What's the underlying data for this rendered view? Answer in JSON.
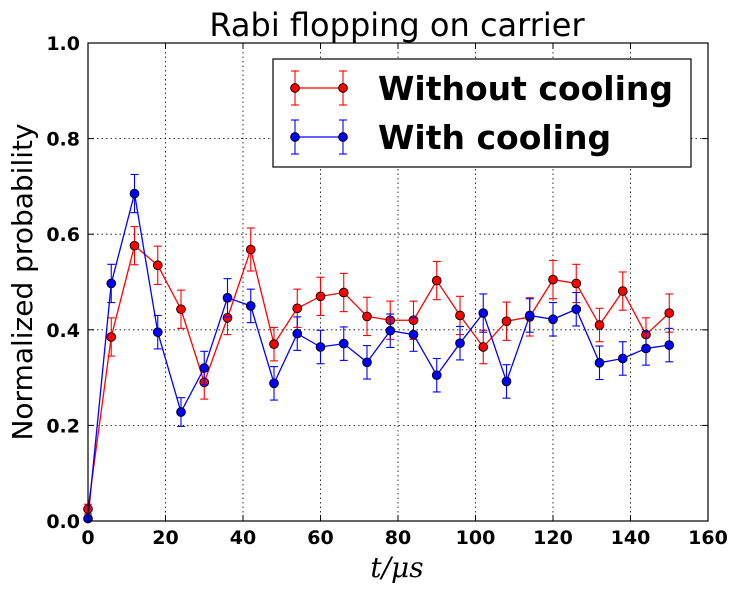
{
  "chart_data": {
    "type": "line",
    "title": "Rabi flopping on carrier",
    "xlabel": "t/μs",
    "ylabel": "Normalized probability",
    "xlim": [
      0,
      160
    ],
    "ylim": [
      0,
      1.0
    ],
    "xticks": [
      "0",
      "20",
      "40",
      "60",
      "80",
      "100",
      "120",
      "140",
      "160"
    ],
    "yticks": [
      "0.0",
      "0.2",
      "0.4",
      "0.6",
      "0.8",
      "1.0"
    ],
    "grid": true,
    "legend_position": "top-right",
    "x": [
      0,
      6,
      12,
      18,
      24,
      30,
      36,
      42,
      48,
      54,
      60,
      66,
      72,
      78,
      84,
      90,
      96,
      102,
      108,
      114,
      120,
      126,
      132,
      138,
      144,
      150
    ],
    "series": [
      {
        "name": "Without cooling",
        "color": "#ff0000",
        "values": [
          0.025,
          0.385,
          0.576,
          0.535,
          0.443,
          0.29,
          0.425,
          0.568,
          0.37,
          0.445,
          0.47,
          0.478,
          0.428,
          0.42,
          0.42,
          0.503,
          0.43,
          0.364,
          0.418,
          0.427,
          0.505,
          0.497,
          0.41,
          0.481,
          0.39,
          0.435
        ],
        "errors": [
          0.01,
          0.04,
          0.04,
          0.04,
          0.04,
          0.035,
          0.035,
          0.045,
          0.035,
          0.04,
          0.04,
          0.04,
          0.04,
          0.04,
          0.04,
          0.04,
          0.04,
          0.035,
          0.04,
          0.04,
          0.04,
          0.04,
          0.035,
          0.04,
          0.035,
          0.04
        ]
      },
      {
        "name": "With cooling",
        "color": "#0000ff",
        "values": [
          0.005,
          0.497,
          0.685,
          0.395,
          0.228,
          0.32,
          0.467,
          0.45,
          0.288,
          0.392,
          0.364,
          0.371,
          0.332,
          0.398,
          0.39,
          0.305,
          0.372,
          0.435,
          0.292,
          0.43,
          0.422,
          0.443,
          0.331,
          0.34,
          0.361,
          0.368
        ],
        "errors": [
          0.005,
          0.04,
          0.04,
          0.035,
          0.03,
          0.035,
          0.04,
          0.035,
          0.035,
          0.035,
          0.035,
          0.035,
          0.035,
          0.035,
          0.035,
          0.035,
          0.035,
          0.04,
          0.035,
          0.035,
          0.035,
          0.035,
          0.035,
          0.035,
          0.035,
          0.035
        ]
      }
    ]
  }
}
